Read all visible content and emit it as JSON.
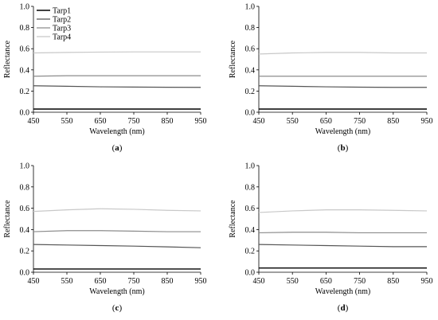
{
  "chart_data": [
    {
      "type": "line",
      "panel_label": "(a)",
      "xlabel": "Wavelength (nm)",
      "ylabel": "Reflectance",
      "xlim": [
        450,
        950
      ],
      "ylim": [
        0,
        1.0
      ],
      "xticks": [
        450,
        550,
        650,
        750,
        850,
        950
      ],
      "yticks": [
        "0.0",
        "0.2",
        "0.4",
        "0.6",
        "0.8",
        "1.0"
      ],
      "grid": false,
      "legend": {
        "placement": "top-left",
        "entries": [
          "Tarp1",
          "Tarp2",
          "Tarp3",
          "Tarp4"
        ]
      },
      "series": [
        {
          "name": "Tarp1",
          "color": "#000000",
          "x": [
            450,
            550,
            650,
            750,
            850,
            950
          ],
          "y": [
            0.03,
            0.03,
            0.03,
            0.03,
            0.03,
            0.03
          ]
        },
        {
          "name": "Tarp2",
          "color": "#555555",
          "x": [
            450,
            550,
            650,
            750,
            850,
            950
          ],
          "y": [
            0.25,
            0.245,
            0.24,
            0.238,
            0.236,
            0.235
          ]
        },
        {
          "name": "Tarp3",
          "color": "#8c8c8c",
          "x": [
            450,
            550,
            650,
            750,
            850,
            950
          ],
          "y": [
            0.34,
            0.345,
            0.345,
            0.345,
            0.345,
            0.345
          ]
        },
        {
          "name": "Tarp4",
          "color": "#c8c8c8",
          "x": [
            450,
            550,
            650,
            750,
            850,
            950
          ],
          "y": [
            0.56,
            0.565,
            0.568,
            0.57,
            0.57,
            0.57
          ]
        }
      ]
    },
    {
      "type": "line",
      "panel_label": "(b)",
      "xlabel": "Wavelength (nm)",
      "ylabel": "Reflectance",
      "xlim": [
        450,
        950
      ],
      "ylim": [
        0,
        1.0
      ],
      "xticks": [
        450,
        550,
        650,
        750,
        850,
        950
      ],
      "yticks": [
        "0.0",
        "0.2",
        "0.4",
        "0.6",
        "0.8",
        "1.0"
      ],
      "grid": false,
      "series": [
        {
          "color": "#000000",
          "x": [
            450,
            550,
            650,
            750,
            850,
            950
          ],
          "y": [
            0.03,
            0.03,
            0.03,
            0.03,
            0.03,
            0.03
          ]
        },
        {
          "color": "#555555",
          "x": [
            450,
            550,
            650,
            750,
            850,
            950
          ],
          "y": [
            0.25,
            0.245,
            0.24,
            0.237,
            0.235,
            0.235
          ]
        },
        {
          "color": "#8c8c8c",
          "x": [
            450,
            550,
            650,
            750,
            850,
            950
          ],
          "y": [
            0.34,
            0.34,
            0.34,
            0.34,
            0.34,
            0.34
          ]
        },
        {
          "color": "#c8c8c8",
          "x": [
            450,
            550,
            650,
            750,
            850,
            950
          ],
          "y": [
            0.55,
            0.56,
            0.565,
            0.565,
            0.56,
            0.56
          ]
        }
      ]
    },
    {
      "type": "line",
      "panel_label": "(c)",
      "xlabel": "Wavelength (nm)",
      "ylabel": "Reflectance",
      "xlim": [
        450,
        950
      ],
      "ylim": [
        0,
        1.0
      ],
      "xticks": [
        450,
        550,
        650,
        750,
        850,
        950
      ],
      "yticks": [
        "0.0",
        "0.2",
        "0.4",
        "0.6",
        "0.8",
        "1.0"
      ],
      "grid": false,
      "series": [
        {
          "color": "#000000",
          "x": [
            450,
            550,
            650,
            750,
            850,
            950
          ],
          "y": [
            0.03,
            0.03,
            0.03,
            0.03,
            0.03,
            0.03
          ]
        },
        {
          "color": "#555555",
          "x": [
            450,
            550,
            650,
            750,
            850,
            950
          ],
          "y": [
            0.26,
            0.255,
            0.25,
            0.245,
            0.238,
            0.23
          ]
        },
        {
          "color": "#8c8c8c",
          "x": [
            450,
            550,
            650,
            750,
            850,
            950
          ],
          "y": [
            0.38,
            0.39,
            0.39,
            0.385,
            0.38,
            0.38
          ]
        },
        {
          "color": "#c8c8c8",
          "x": [
            450,
            550,
            650,
            750,
            850,
            950
          ],
          "y": [
            0.57,
            0.585,
            0.595,
            0.59,
            0.58,
            0.575
          ]
        }
      ]
    },
    {
      "type": "line",
      "panel_label": "(d)",
      "xlabel": "Wavelength (nm)",
      "ylabel": "Reflectance",
      "xlim": [
        450,
        950
      ],
      "ylim": [
        0,
        1.0
      ],
      "xticks": [
        450,
        550,
        650,
        750,
        850,
        950
      ],
      "yticks": [
        "0.0",
        "0.2",
        "0.4",
        "0.6",
        "0.8",
        "1.0"
      ],
      "grid": false,
      "series": [
        {
          "color": "#000000",
          "x": [
            450,
            550,
            650,
            750,
            850,
            950
          ],
          "y": [
            0.04,
            0.04,
            0.04,
            0.04,
            0.04,
            0.04
          ]
        },
        {
          "color": "#555555",
          "x": [
            450,
            550,
            650,
            750,
            850,
            950
          ],
          "y": [
            0.26,
            0.255,
            0.25,
            0.245,
            0.24,
            0.24
          ]
        },
        {
          "color": "#8c8c8c",
          "x": [
            450,
            550,
            650,
            750,
            850,
            950
          ],
          "y": [
            0.37,
            0.375,
            0.375,
            0.37,
            0.37,
            0.37
          ]
        },
        {
          "color": "#c8c8c8",
          "x": [
            450,
            550,
            650,
            750,
            850,
            950
          ],
          "y": [
            0.56,
            0.575,
            0.585,
            0.585,
            0.58,
            0.575
          ]
        }
      ]
    }
  ]
}
